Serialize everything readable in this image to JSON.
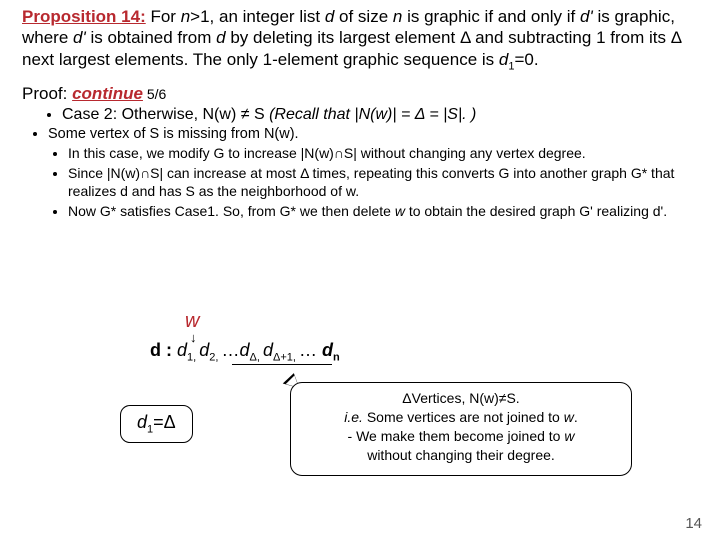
{
  "prop": {
    "label": "Proposition 14:",
    "text_a": " For ",
    "n": "n",
    "gt1": ">1, an integer list ",
    "d": "d",
    "text_b": " of size ",
    "n2": "n",
    "text_c": " is graphic if and only if ",
    "dp": "d'",
    "text_d": " is graphic, where ",
    "dp2": "d'",
    "text_e": " is obtained from ",
    "d2": "d",
    "text_f": " by deleting its largest element Δ and subtracting 1 from its Δ next largest elements. The only 1-element graphic sequence is ",
    "d1": "d",
    "d1sub": "1",
    "eq0": "=0."
  },
  "proof": {
    "label": "Proof: ",
    "cont": "continue",
    "frac": " 5/6"
  },
  "case2": {
    "text": "Case 2: Otherwise, N(w) ≠ S ",
    "recall": "(Recall that |N(w)| = Δ = |S|. )"
  },
  "sv": {
    "text": "Some vertex of S is missing from N(w)."
  },
  "p1": "In this case, we modify G to increase |N(w)∩S| without changing any vertex degree.",
  "p2": "Since |N(w)∩S| can increase at most Δ times, repeating this converts G into another graph G* that realizes d and has S as the neighborhood of w.",
  "p3_a": "Now G* satisfies Case1. So, from G* we then delete ",
  "p3_w": "w ",
  "p3_b": " to obtain the desired graph G' realizing d'.",
  "diagram": {
    "w": "w",
    "arrow": "↓",
    "pre": "d : ",
    "d1": "d",
    "s1": "1, ",
    "d2": "d",
    "s2": "2, ",
    "dots1": "…",
    "dD": "d",
    "sD": "Δ, ",
    "dD1": "d",
    "sD1": "Δ+1, ",
    "dots2": "… ",
    "dn": " d",
    "sn": "n"
  },
  "d1box": {
    "d": "d",
    "sub": "1",
    "eq": "=Δ"
  },
  "callout": {
    "l1": "ΔVertices,  N(w)≠S.",
    "l2a": "i.e.",
    "l2b": " Some vertices are not joined to ",
    "l2w": "w",
    "l2c": ".",
    "l3a": "- We make them become joined to ",
    "l3w": "w",
    "l4": "without changing their degree."
  },
  "page": "14"
}
